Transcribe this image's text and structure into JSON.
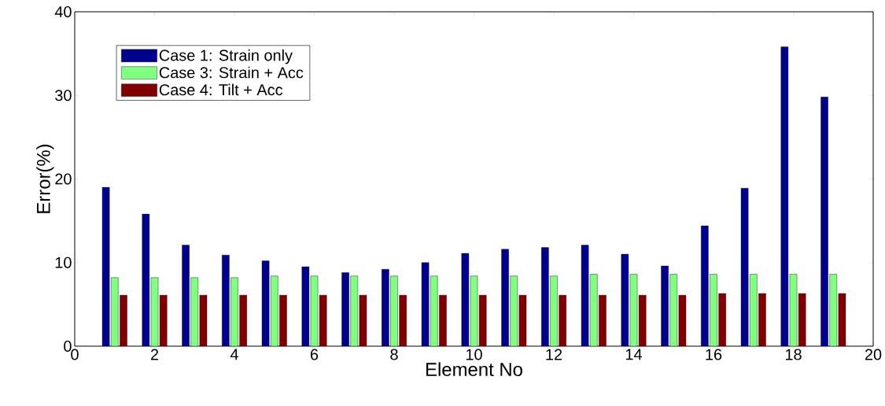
{
  "chart_data": {
    "type": "bar",
    "xlabel": "Element No",
    "ylabel": "Error(%)",
    "x": [
      1,
      2,
      3,
      4,
      5,
      6,
      7,
      8,
      9,
      10,
      11,
      12,
      13,
      14,
      15,
      16,
      17,
      18,
      19
    ],
    "xlim": [
      0,
      20
    ],
    "xticks": [
      0,
      2,
      4,
      6,
      8,
      10,
      12,
      14,
      16,
      18,
      20
    ],
    "ylim": [
      0,
      40
    ],
    "yticks": [
      0,
      10,
      20,
      30,
      40
    ],
    "legend": "top left",
    "series": [
      {
        "name": "Case 1: Strain only",
        "color": "#00008f",
        "values": [
          19.0,
          15.8,
          12.1,
          10.9,
          10.2,
          9.5,
          8.8,
          9.2,
          10.0,
          11.1,
          11.6,
          11.8,
          12.1,
          11.0,
          9.6,
          14.4,
          18.9,
          35.8,
          29.8
        ]
      },
      {
        "name": "Case 3: Strain + Acc",
        "color": "#80ff80",
        "values": [
          8.2,
          8.2,
          8.2,
          8.2,
          8.4,
          8.4,
          8.4,
          8.4,
          8.4,
          8.4,
          8.4,
          8.4,
          8.6,
          8.6,
          8.6,
          8.6,
          8.6,
          8.6,
          8.6
        ]
      },
      {
        "name": "Case 4: Tilt + Acc",
        "color": "#800000",
        "values": [
          6.1,
          6.1,
          6.1,
          6.1,
          6.1,
          6.1,
          6.1,
          6.1,
          6.1,
          6.1,
          6.1,
          6.1,
          6.1,
          6.1,
          6.1,
          6.3,
          6.3,
          6.3,
          6.3
        ]
      }
    ]
  }
}
